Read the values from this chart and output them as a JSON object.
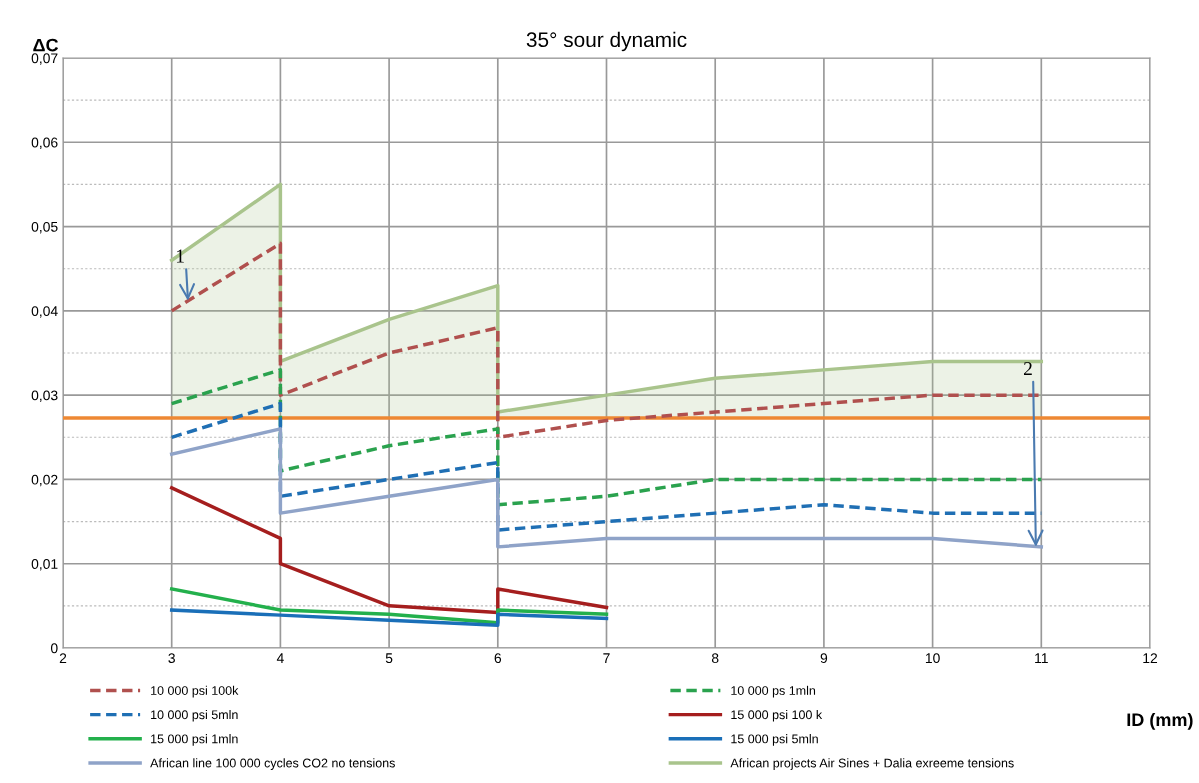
{
  "chart_data": {
    "type": "line",
    "title": "35° sour dynamic",
    "xlabel": "ID (mm)",
    "ylabel": "ΔC",
    "xlim": [
      2,
      12
    ],
    "xticks": [
      2,
      3,
      4,
      5,
      6,
      7,
      8,
      9,
      10,
      11,
      12
    ],
    "ylim": [
      0,
      0.07
    ],
    "yticks": [
      {
        "value": 0,
        "label": "0"
      },
      {
        "value": 0.01,
        "label": "0,01"
      },
      {
        "value": 0.02,
        "label": "0,02"
      },
      {
        "value": 0.03,
        "label": "0,03"
      },
      {
        "value": 0.04,
        "label": "0,04"
      },
      {
        "value": 0.05,
        "label": "0,05"
      },
      {
        "value": 0.06,
        "label": "0,06"
      },
      {
        "value": 0.07,
        "label": "0,07"
      }
    ],
    "grid": true,
    "legend": "bottom",
    "marker": "none",
    "series": [
      {
        "name": "10 000 psi 100k",
        "color": "#b0504e",
        "line_style": "dashed",
        "x": [
          3,
          4,
          4,
          5,
          6,
          6,
          7,
          8,
          9,
          10,
          11
        ],
        "values": [
          0.04,
          0.048,
          0.03,
          0.035,
          0.038,
          0.025,
          0.027,
          0.028,
          0.029,
          0.03,
          0.03
        ]
      },
      {
        "name": "10 000 ps 1mln",
        "color": "#2aa24e",
        "line_style": "dashed",
        "x": [
          3,
          4,
          4,
          5,
          6,
          6,
          7,
          8,
          9,
          10,
          11
        ],
        "values": [
          0.029,
          0.033,
          0.021,
          0.024,
          0.026,
          0.017,
          0.018,
          0.02,
          0.02,
          0.02,
          0.02
        ]
      },
      {
        "name": "10 000 psi 5mln",
        "color": "#1f6fb4",
        "line_style": "dashed",
        "x": [
          3,
          4,
          4,
          5,
          6,
          6,
          7,
          8,
          9,
          10,
          11
        ],
        "values": [
          0.025,
          0.029,
          0.018,
          0.02,
          0.022,
          0.014,
          0.015,
          0.016,
          0.017,
          0.016,
          0.016
        ]
      },
      {
        "name": "15 000 psi 100 k",
        "color": "#a51e1e",
        "line_style": "solid",
        "x": [
          3,
          4,
          4,
          5,
          6,
          6,
          7
        ],
        "values": [
          0.019,
          0.013,
          0.01,
          0.005,
          0.0042,
          0.007,
          0.0048
        ]
      },
      {
        "name": "15 000 psi 1mln",
        "color": "#23b04c",
        "line_style": "solid",
        "x": [
          3,
          4,
          5,
          6,
          6,
          7
        ],
        "values": [
          0.007,
          0.0045,
          0.004,
          0.003,
          0.0045,
          0.004
        ]
      },
      {
        "name": "15 000 psi 5mln",
        "color": "#1a6fb8",
        "line_style": "solid",
        "x": [
          3,
          4,
          5,
          6,
          6,
          7
        ],
        "values": [
          0.0045,
          0.0039,
          0.0033,
          0.0027,
          0.004,
          0.0035
        ]
      },
      {
        "name": "African line 100 000 cycles CO2 no tensions",
        "color": "#8fa3c8",
        "line_style": "solid",
        "x": [
          3,
          4,
          4,
          5,
          6,
          6,
          7,
          8,
          9,
          10,
          11
        ],
        "values": [
          0.023,
          0.026,
          0.016,
          0.018,
          0.02,
          0.012,
          0.013,
          0.013,
          0.013,
          0.013,
          0.012
        ]
      },
      {
        "name": "African projects Air Sines + Dalia exreeme tensions",
        "type": "area",
        "color": "#a9c48c",
        "line_style": "solid",
        "x": [
          3,
          4,
          4,
          5,
          6,
          6,
          7,
          8,
          9,
          10,
          11
        ],
        "values": [
          0.046,
          0.055,
          0.034,
          0.039,
          0.043,
          0.028,
          0.03,
          0.032,
          0.033,
          0.034,
          0.034
        ]
      }
    ],
    "ref_lines": [
      {
        "axis": "y",
        "value": 0.0273,
        "color": "#ee8833"
      }
    ],
    "annotations": [
      {
        "text": "1",
        "x": 3.15,
        "y": 0.0412
      },
      {
        "text": "2",
        "x": 10.95,
        "y": 0.012
      }
    ]
  }
}
